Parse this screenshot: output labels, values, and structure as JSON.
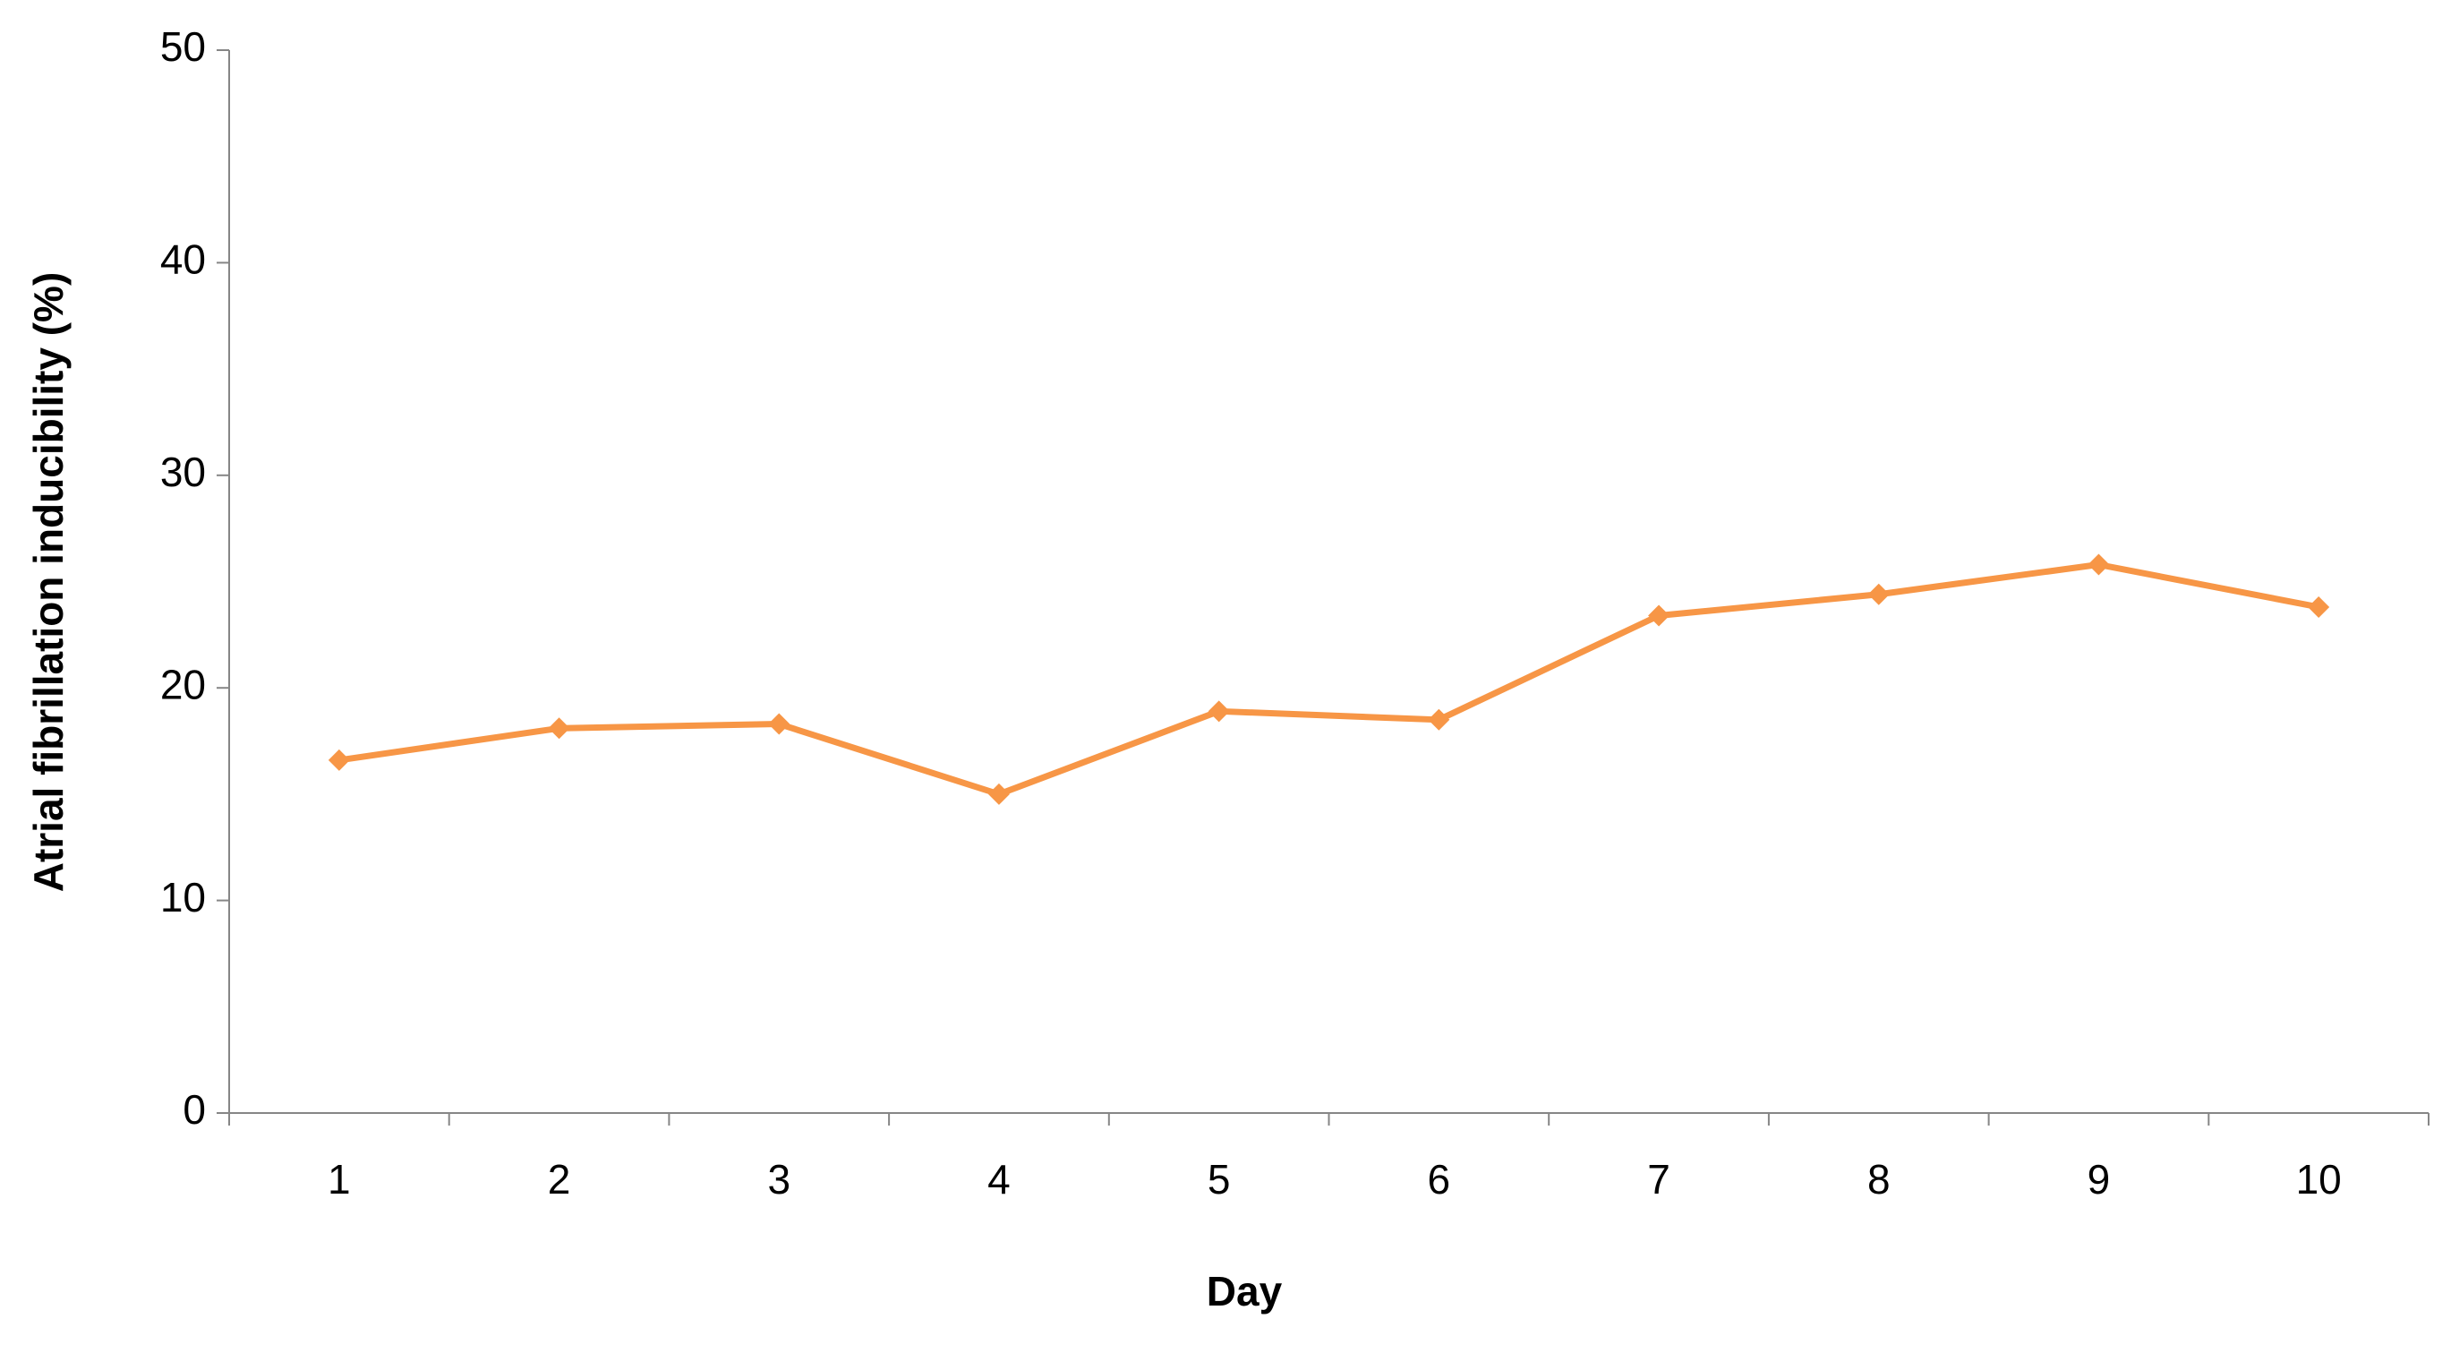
{
  "chart_data": {
    "type": "line",
    "x_label": "Day",
    "y_label": "Atrial fibrillation inducibility (%)",
    "categories": [
      "1",
      "2",
      "3",
      "4",
      "5",
      "6",
      "7",
      "8",
      "9",
      "10"
    ],
    "series": [
      {
        "color": "#f79646",
        "values": [
          16.6,
          18.1,
          18.3,
          15.0,
          18.9,
          18.5,
          23.4,
          24.4,
          25.8,
          23.8
        ]
      }
    ],
    "ylim": [
      0,
      50
    ],
    "yticks": [
      0,
      10,
      20,
      30,
      40,
      50
    ],
    "grid": false,
    "marker": "diamond"
  }
}
